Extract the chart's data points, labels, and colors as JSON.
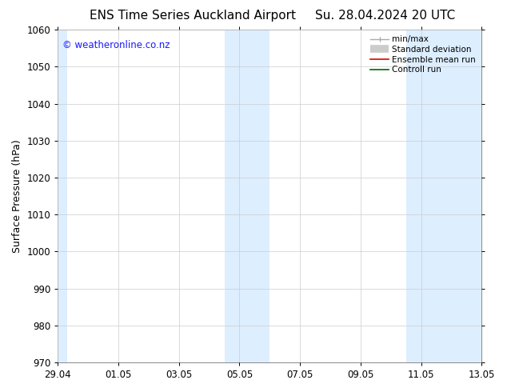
{
  "title_left": "ENS Time Series Auckland Airport",
  "title_right": "Su. 28.04.2024 20 UTC",
  "ylabel": "Surface Pressure (hPa)",
  "ylim": [
    970,
    1060
  ],
  "yticks": [
    970,
    980,
    990,
    1000,
    1010,
    1020,
    1030,
    1040,
    1050,
    1060
  ],
  "xtick_labels": [
    "29.04",
    "01.05",
    "03.05",
    "05.05",
    "07.05",
    "09.05",
    "11.05",
    "13.05"
  ],
  "xtick_positions": [
    0,
    2,
    4,
    6,
    8,
    10,
    12,
    14
  ],
  "xlim": [
    0,
    14
  ],
  "shaded_bands": [
    {
      "xstart": -0.3,
      "xend": 0.3
    },
    {
      "xstart": 5.5,
      "xend": 7.0
    },
    {
      "xstart": 11.5,
      "xend": 14.0
    }
  ],
  "band_color": "#ddeeff",
  "watermark_text": "© weatheronline.co.nz",
  "watermark_color": "#1a1aff",
  "bg_color": "#ffffff",
  "grid_color": "#cccccc",
  "title_fontsize": 11,
  "axis_label_fontsize": 9,
  "tick_fontsize": 8.5,
  "legend_fontsize": 7.5
}
